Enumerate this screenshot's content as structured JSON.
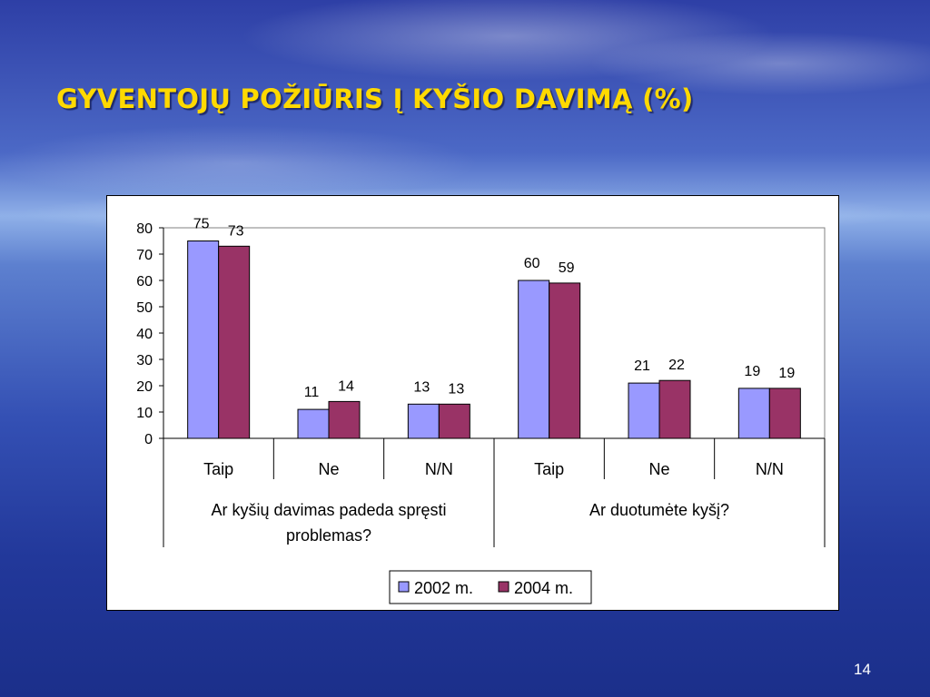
{
  "slide": {
    "title": "GYVENTOJŲ POŽIŪRIS Į KYŠIO DAVIMĄ (%)",
    "page_number": "14"
  },
  "chart_data": {
    "type": "bar",
    "categories": [
      "Taip",
      "Ne",
      "N/N",
      "Taip",
      "Ne",
      "N/N"
    ],
    "groups": [
      {
        "label_lines": [
          "Ar kyšių davimas padeda spręsti",
          "problemas?"
        ],
        "categories": [
          0,
          1,
          2
        ]
      },
      {
        "label_lines": [
          "Ar duotumėte kyšį?"
        ],
        "categories": [
          3,
          4,
          5
        ]
      }
    ],
    "series": [
      {
        "name": "2002 m.",
        "color": "#9999ff",
        "values": [
          75,
          11,
          13,
          60,
          21,
          19
        ]
      },
      {
        "name": "2004 m.",
        "color": "#993366",
        "values": [
          73,
          14,
          13,
          59,
          22,
          19
        ]
      }
    ],
    "ylim": [
      0,
      80
    ],
    "yticks": [
      0,
      10,
      20,
      30,
      40,
      50,
      60,
      70,
      80
    ],
    "data_labels": true,
    "legend_position": "bottom",
    "grid": false
  }
}
